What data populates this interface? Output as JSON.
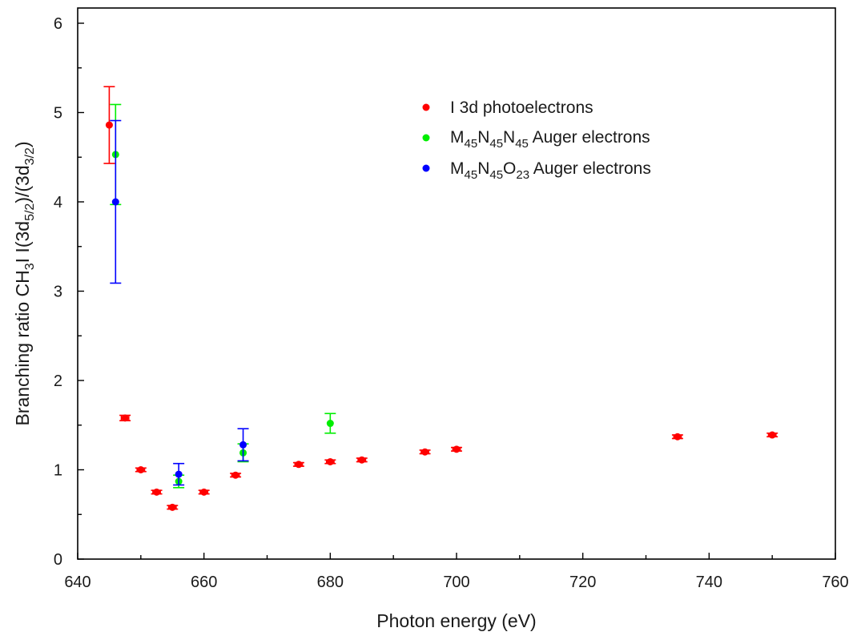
{
  "chart_data": {
    "type": "scatter",
    "title": "",
    "xlabel": "Photon energy (eV)",
    "ylabel": {
      "p1": "Branching ratio CH",
      "s1": "3",
      "p2": "I I(3d",
      "s2": "5/2",
      "p3": ")/(3d",
      "s3": "3/2",
      "p4": ")"
    },
    "xlim": [
      640,
      760
    ],
    "ylim": [
      0,
      6.2
    ],
    "xticks": [
      640,
      660,
      680,
      700,
      720,
      740,
      760
    ],
    "yticks": [
      0,
      1,
      2,
      3,
      4,
      5,
      6
    ],
    "grid": false,
    "legend_position": "top-center",
    "series": [
      {
        "key": "i3d",
        "color": "#ff0000",
        "legend": {
          "text": "I 3d photoelectrons"
        },
        "points": [
          {
            "x": 645.0,
            "y": 4.86,
            "yerr": 0.43
          },
          {
            "x": 647.5,
            "y": 1.58,
            "yerr": 0.03,
            "xerr": 0.6
          },
          {
            "x": 650.0,
            "y": 1.0,
            "yerr": 0.02,
            "xerr": 0.6
          },
          {
            "x": 652.5,
            "y": 0.75,
            "yerr": 0.02,
            "xerr": 0.6
          },
          {
            "x": 655.0,
            "y": 0.58,
            "yerr": 0.02,
            "xerr": 0.6
          },
          {
            "x": 660.0,
            "y": 0.75,
            "yerr": 0.02,
            "xerr": 0.6
          },
          {
            "x": 665.0,
            "y": 0.94,
            "yerr": 0.02,
            "xerr": 0.6
          },
          {
            "x": 675.0,
            "y": 1.06,
            "yerr": 0.02,
            "xerr": 0.6
          },
          {
            "x": 680.0,
            "y": 1.09,
            "yerr": 0.02,
            "xerr": 0.6
          },
          {
            "x": 685.0,
            "y": 1.11,
            "yerr": 0.02,
            "xerr": 0.6
          },
          {
            "x": 695.0,
            "y": 1.2,
            "yerr": 0.02,
            "xerr": 0.6
          },
          {
            "x": 700.0,
            "y": 1.23,
            "yerr": 0.02,
            "xerr": 0.6
          },
          {
            "x": 735.0,
            "y": 1.37,
            "yerr": 0.02,
            "xerr": 0.6
          },
          {
            "x": 750.0,
            "y": 1.39,
            "yerr": 0.02,
            "xerr": 0.6
          }
        ]
      },
      {
        "key": "mnn",
        "color": "#00ee00",
        "legend": {
          "p1": "M",
          "s1": "45",
          "p2": "N",
          "s2": "45",
          "p3": "N",
          "s3": "45",
          "p4": " Auger electrons"
        },
        "points": [
          {
            "x": 646.0,
            "y": 4.53,
            "yerr": 0.56
          },
          {
            "x": 656.0,
            "y": 0.87,
            "yerr": 0.07
          },
          {
            "x": 666.2,
            "y": 1.19,
            "yerr": 0.1
          },
          {
            "x": 680.0,
            "y": 1.52,
            "yerr": 0.11
          }
        ]
      },
      {
        "key": "mno",
        "color": "#0000ff",
        "legend": {
          "p1": "M",
          "s1": "45",
          "p2": "N",
          "s2": "45",
          "p3": "O",
          "s3": "23",
          "p4": " Auger electrons"
        },
        "points": [
          {
            "x": 646.0,
            "y": 4.0,
            "yerr": 0.91
          },
          {
            "x": 656.0,
            "y": 0.95,
            "yerr": 0.12
          },
          {
            "x": 666.2,
            "y": 1.28,
            "yerr": 0.18
          }
        ]
      }
    ]
  }
}
